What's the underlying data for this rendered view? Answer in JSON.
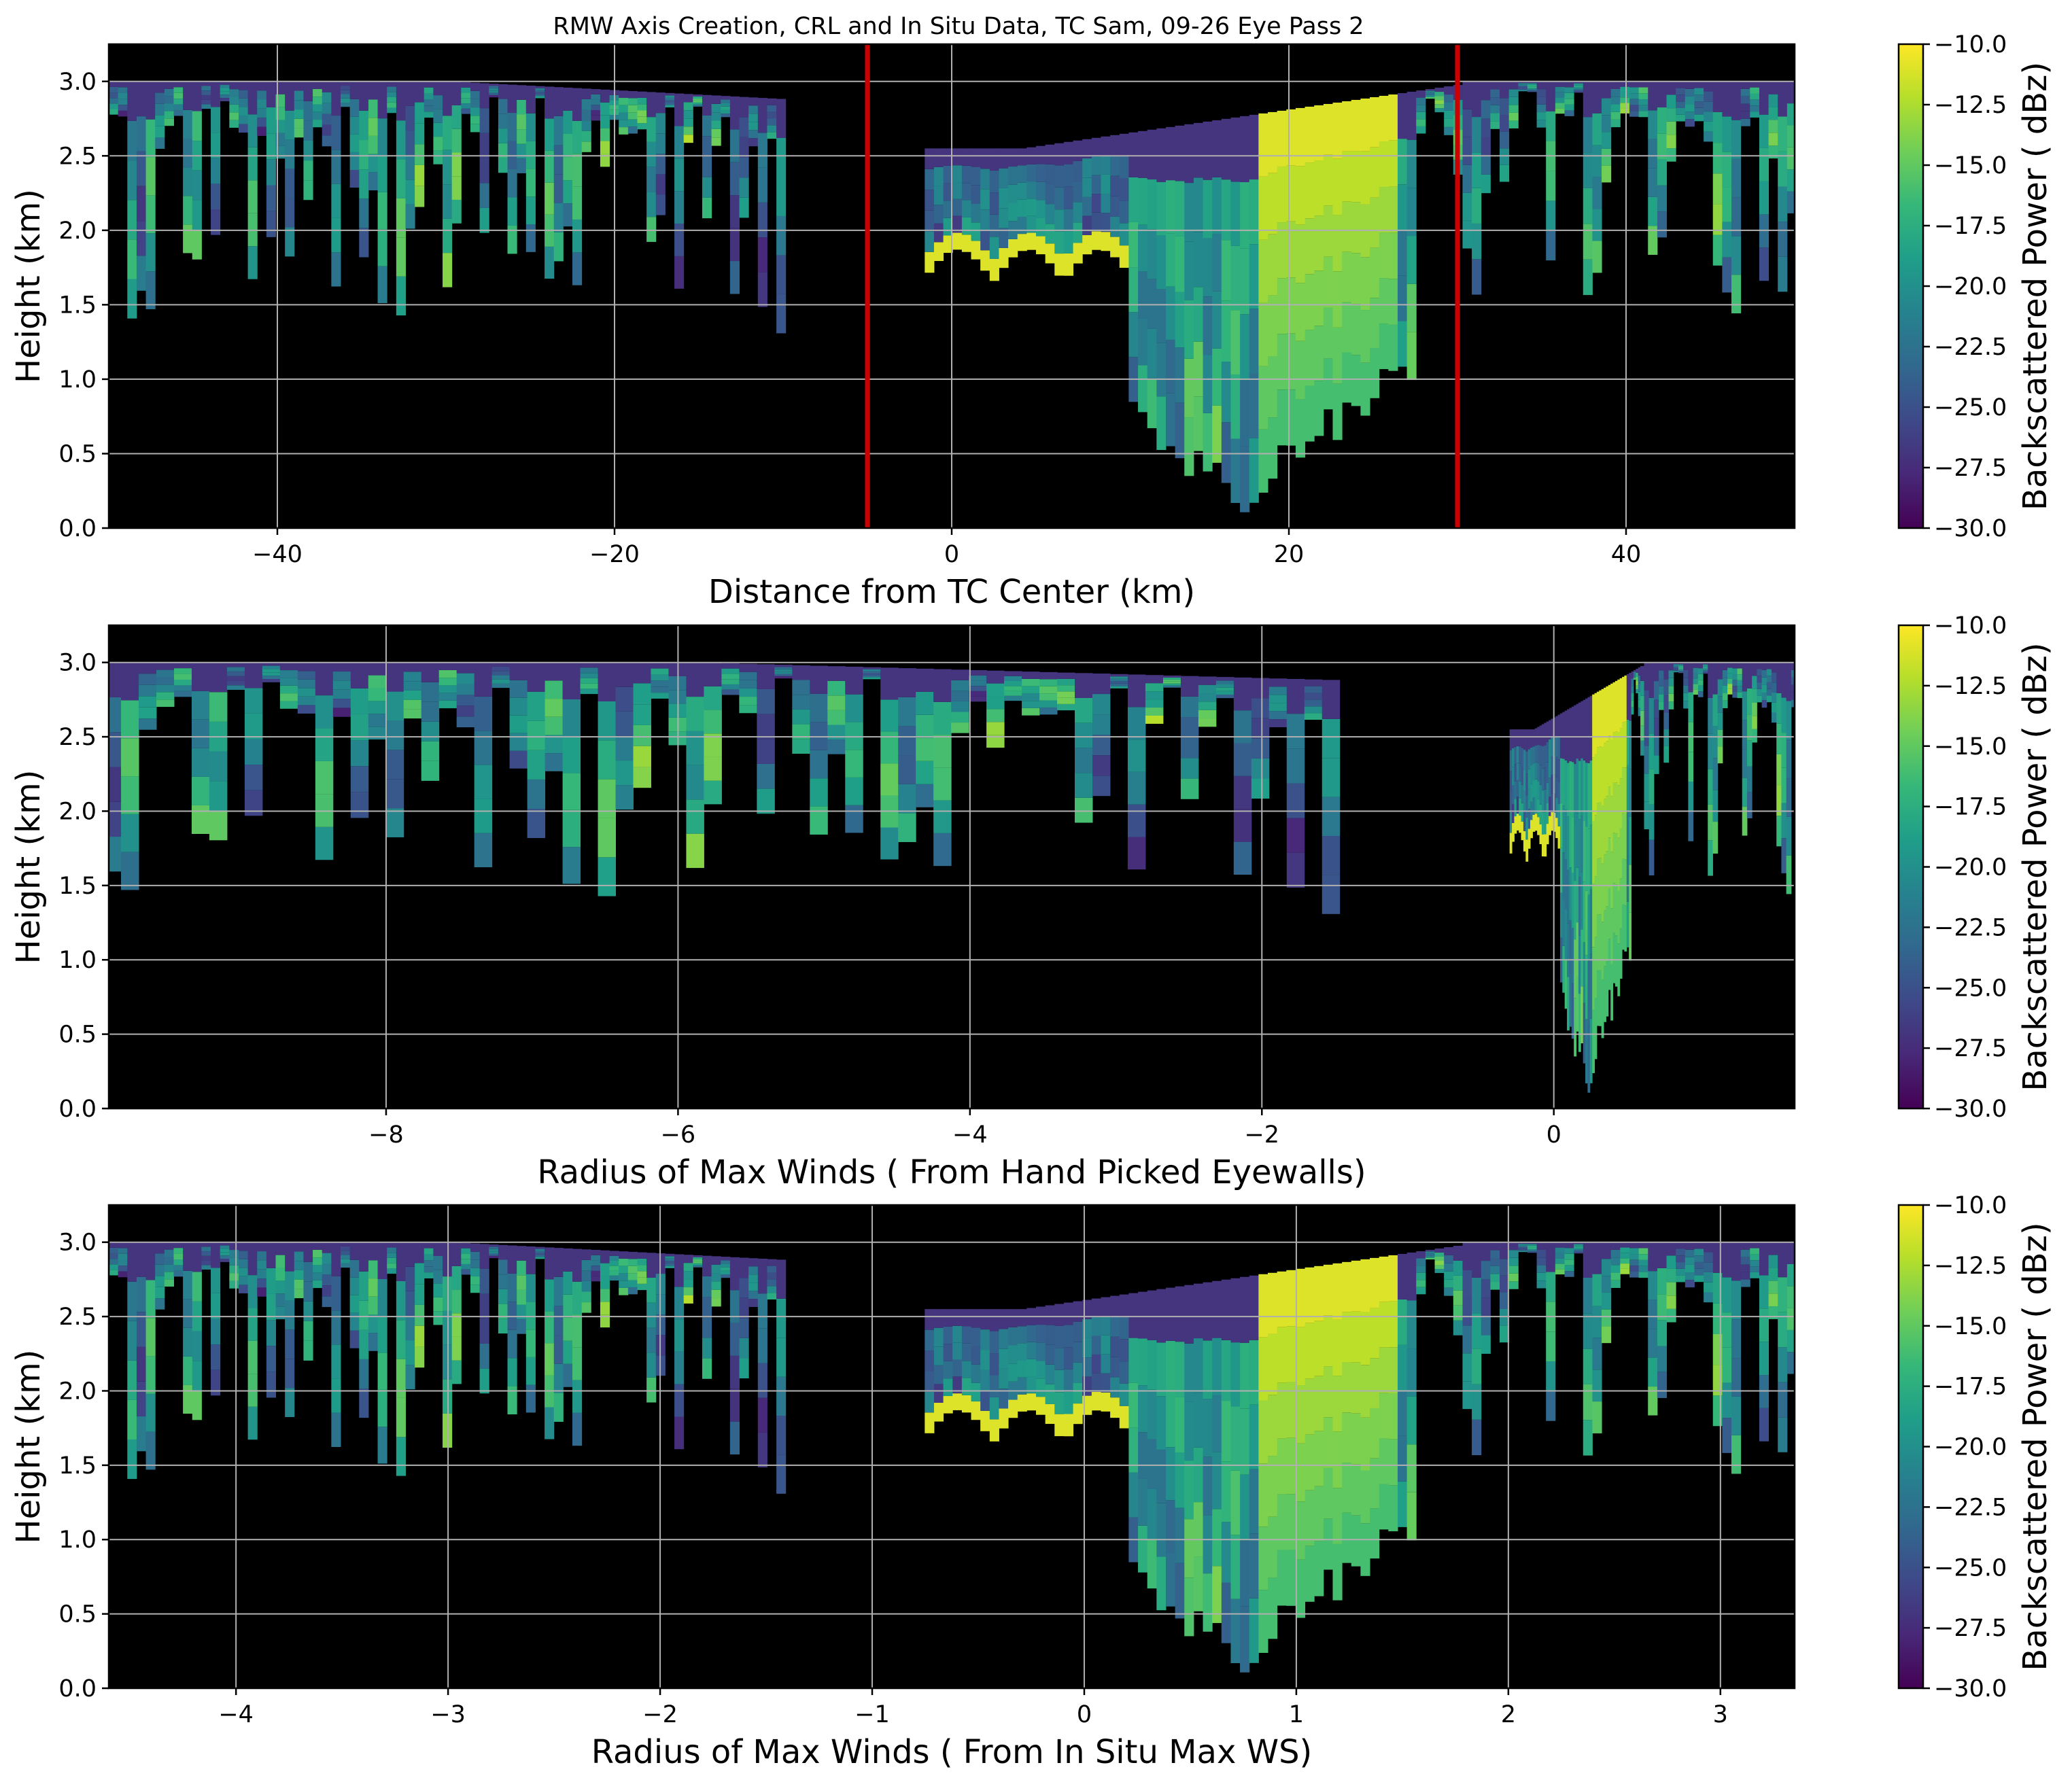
{
  "title": "RMW Axis Creation, CRL and In Situ Data, TC Sam, 09-26 Eye Pass 2",
  "colormap": {
    "name": "viridis",
    "stops": [
      "#440154",
      "#482878",
      "#3e4989",
      "#31688e",
      "#26828e",
      "#1f9e89",
      "#35b779",
      "#6ece58",
      "#b5de2b",
      "#fde725"
    ],
    "background": "#000000",
    "marker_color": "#cc0000"
  },
  "chart_data": [
    {
      "type": "heatmap",
      "xlabel": "Distance from TC Center (km)",
      "ylabel": "Height (km)",
      "xlim": [
        -50,
        50
      ],
      "ylim": [
        0,
        3.25
      ],
      "xticks": [
        -40,
        -20,
        0,
        20,
        40
      ],
      "xtick_labels": [
        "−40",
        "−20",
        "0",
        "20",
        "40"
      ],
      "yticks": [
        0,
        0.5,
        1.0,
        1.5,
        2.0,
        2.5,
        3.0
      ],
      "ytick_labels": [
        "0.0",
        "0.5",
        "1.0",
        "1.5",
        "2.0",
        "2.5",
        "3.0"
      ],
      "grid": true,
      "vertical_markers": [
        -5,
        30
      ],
      "colorbar": {
        "label": "Backscattered Power ( dBz)",
        "range": [
          -30,
          -10
        ],
        "ticks": [
          -10,
          -12.5,
          -15,
          -17.5,
          -20,
          -22.5,
          -25,
          -27.5,
          -30
        ],
        "tick_labels": [
          "−10.0",
          "−12.5",
          "−15.0",
          "−17.5",
          "−20.0",
          "−22.5",
          "−25.0",
          "−27.5",
          "−30.0"
        ]
      }
    },
    {
      "type": "heatmap",
      "xlabel": "Radius of Max Winds ( From Hand Picked Eyewalls)",
      "ylabel": "Height (km)",
      "xlim": [
        -9.9,
        1.65
      ],
      "ylim": [
        0,
        3.25
      ],
      "xticks": [
        -8,
        -6,
        -4,
        -2,
        0
      ],
      "xtick_labels": [
        "−8",
        "−6",
        "−4",
        "−2",
        "0"
      ],
      "yticks": [
        0,
        0.5,
        1.0,
        1.5,
        2.0,
        2.5,
        3.0
      ],
      "ytick_labels": [
        "0.0",
        "0.5",
        "1.0",
        "1.5",
        "2.0",
        "2.5",
        "3.0"
      ],
      "grid": true,
      "vertical_markers": [],
      "colorbar": {
        "label": "Backscattered Power ( dBz)",
        "range": [
          -30,
          -10
        ],
        "ticks": [
          -10,
          -12.5,
          -15,
          -17.5,
          -20,
          -22.5,
          -25,
          -27.5,
          -30
        ],
        "tick_labels": [
          "−10.0",
          "−12.5",
          "−15.0",
          "−17.5",
          "−20.0",
          "−22.5",
          "−25.0",
          "−27.5",
          "−30.0"
        ]
      }
    },
    {
      "type": "heatmap",
      "xlabel": "Radius of Max Winds ( From In Situ Max WS)",
      "ylabel": "Height (km)",
      "xlim": [
        -4.6,
        3.35
      ],
      "ylim": [
        0,
        3.25
      ],
      "xticks": [
        -4,
        -3,
        -2,
        -1,
        0,
        1,
        2,
        3
      ],
      "xtick_labels": [
        "−4",
        "−3",
        "−2",
        "−1",
        "0",
        "1",
        "2",
        "3"
      ],
      "yticks": [
        0,
        0.5,
        1.0,
        1.5,
        2.0,
        2.5,
        3.0
      ],
      "ytick_labels": [
        "0.0",
        "0.5",
        "1.0",
        "1.5",
        "2.0",
        "2.5",
        "3.0"
      ],
      "grid": true,
      "vertical_markers": [],
      "colorbar": {
        "label": "Backscattered Power ( dBz)",
        "range": [
          -30,
          -10
        ],
        "ticks": [
          -10,
          -12.5,
          -15,
          -17.5,
          -20,
          -22.5,
          -25,
          -27.5,
          -30
        ],
        "tick_labels": [
          "−10.0",
          "−12.5",
          "−15.0",
          "−17.5",
          "−20.0",
          "−22.5",
          "−25.0",
          "−27.5",
          "−30.0"
        ]
      }
    }
  ]
}
